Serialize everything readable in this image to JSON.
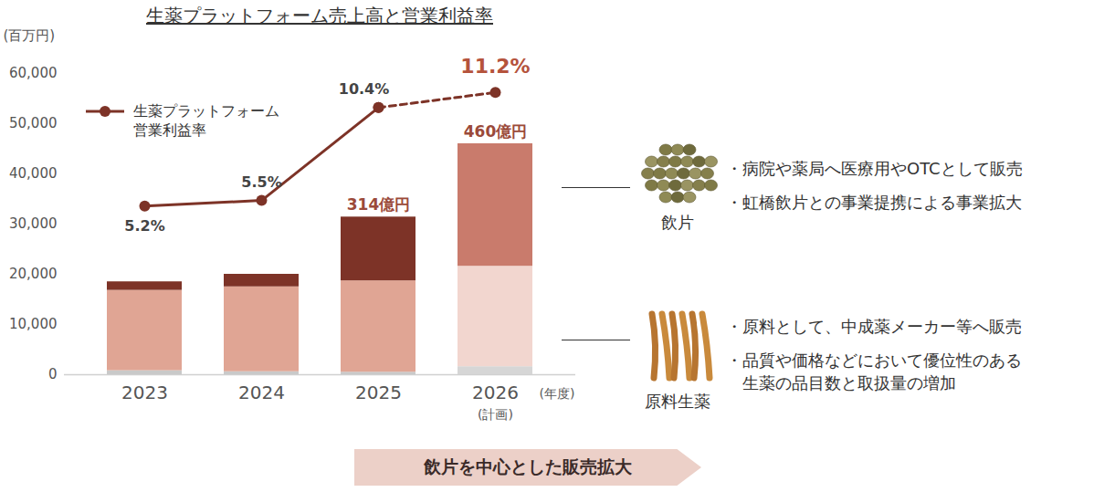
{
  "chart_data": {
    "type": "bar",
    "stacked": true,
    "title": "生薬プラットフォーム売上高と営業利益率",
    "y_label": "(百万円)",
    "x_label": "(年度)",
    "categories": [
      "2023",
      "2024",
      "2025",
      "2026"
    ],
    "category_sublabels": [
      null,
      null,
      null,
      "(計画)"
    ],
    "ylim": [
      0,
      60000
    ],
    "yticks": [
      0,
      {
        "value": 10000,
        "label": "10,000"
      },
      {
        "value": 20000,
        "label": "20,000"
      },
      {
        "value": 30000,
        "label": "30,000"
      },
      {
        "value": 40000,
        "label": "40,000"
      },
      {
        "value": 50000,
        "label": "50,000"
      },
      {
        "value": 60000,
        "label": "60,000"
      }
    ],
    "y2lim": [
      -3.7,
      12.2
    ],
    "y2ticks": [],
    "grid": false,
    "legend": "upper left",
    "series": [
      {
        "type": "bar",
        "colors": [
          "#c9c9c9",
          "#c9c9c9",
          "#c9c9c9",
          "#d6d6d6"
        ],
        "values": [
          800,
          600,
          500,
          1600
        ]
      },
      {
        "type": "bar",
        "colors": [
          "#e0a594",
          "#e0a594",
          "#e0a594",
          "#f2d6cf"
        ],
        "values": [
          16000,
          16900,
          18200,
          20000
        ]
      },
      {
        "type": "bar",
        "colors": [
          "#7d3327",
          "#7d3327",
          "#7d3327",
          "#c97b6c"
        ],
        "values": [
          1700,
          2500,
          12700,
          24400
        ]
      },
      {
        "name": "生薬プラットフォーム\n営業利益率",
        "type": "line",
        "axis": "y2",
        "color": "#7d3327",
        "marker": "circle",
        "line_style": "solid",
        "data_labels": true,
        "values": [
          5.2,
          5.5,
          10.4,
          null
        ],
        "value_labels": [
          "5.2%",
          "5.5%",
          "10.4%",
          null
        ]
      },
      {
        "type": "line",
        "axis": "y2",
        "color": "#7d3327",
        "marker": "circle",
        "line_style": "dashed",
        "data_labels": true,
        "values": [
          null,
          null,
          10.4,
          11.2
        ],
        "value_labels": [
          null,
          null,
          null,
          "11.2%"
        ]
      }
    ],
    "annotations": [
      {
        "category": "2025",
        "value": 31400,
        "text": "314億円"
      },
      {
        "category": "2026",
        "value": 46000,
        "text": "460億円"
      }
    ],
    "side_notes": [
      {
        "label": "飲片",
        "bullets": [
          "・病院や薬局へ医療用やOTCとして販売",
          "・虹橋飲片との事業提携による事業拡大"
        ]
      },
      {
        "label": "原料生薬",
        "bullets": [
          "・原料として、中成薬メーカー等へ販売",
          "・品質や価格などにおいて優位性のある生薬の品目数と取扱量の増加"
        ]
      }
    ],
    "banner": "飲片を中心とした販売拡大"
  }
}
